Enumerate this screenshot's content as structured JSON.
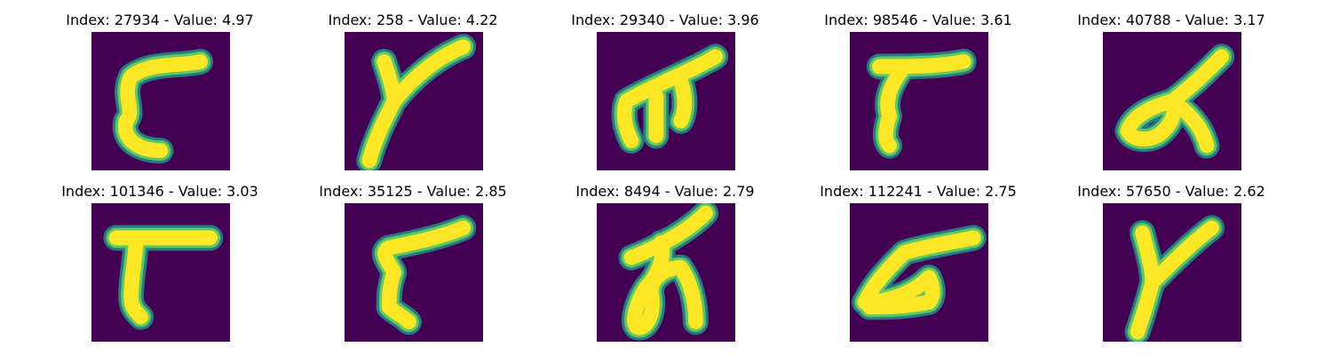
{
  "colors": {
    "background": "#440154",
    "teal": "#21918c",
    "green": "#5ec962",
    "yellow": "#fde725"
  },
  "chart_data": {
    "type": "image-grid",
    "title_format": "Index: {index} - Value: {value}",
    "axis": "off",
    "grid": false,
    "colormap": "viridis",
    "panels": [
      {
        "index": "27934",
        "value": "4.97",
        "title": "Index: 27934 - Value: 4.97"
      },
      {
        "index": "258",
        "value": "4.22",
        "title": "Index: 258 - Value: 4.22"
      },
      {
        "index": "29340",
        "value": "3.96",
        "title": "Index: 29340 - Value: 3.96"
      },
      {
        "index": "98546",
        "value": "3.61",
        "title": "Index: 98546 - Value: 3.61"
      },
      {
        "index": "40788",
        "value": "3.17",
        "title": "Index: 40788 - Value: 3.17"
      },
      {
        "index": "101346",
        "value": "3.03",
        "title": "Index: 101346 - Value: 3.03"
      },
      {
        "index": "35125",
        "value": "2.85",
        "title": "Index: 35125 - Value: 2.85"
      },
      {
        "index": "8494",
        "value": "2.79",
        "title": "Index: 8494 - Value: 2.79"
      },
      {
        "index": "112241",
        "value": "2.75",
        "title": "Index: 112241 - Value: 2.75"
      },
      {
        "index": "57650",
        "value": "2.62",
        "title": "Index: 57650 - Value: 2.62"
      }
    ]
  }
}
